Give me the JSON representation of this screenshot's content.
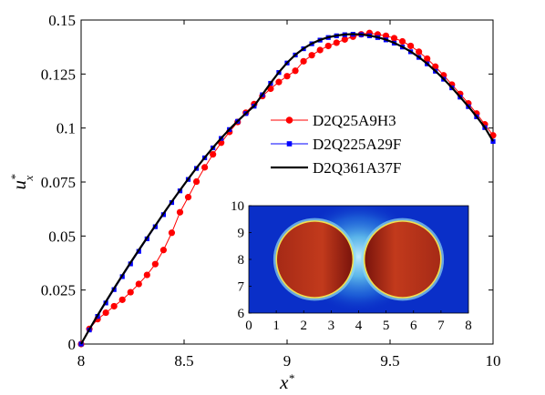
{
  "chart_data": [
    {
      "type": "line",
      "xlabel": "x",
      "xlabel_sup": "*",
      "ylabel": "u",
      "ylabel_sup": "*",
      "ylabel_sub": "x",
      "xlim": [
        8,
        10
      ],
      "ylim": [
        0,
        0.15
      ],
      "x_ticks": [
        8,
        8.5,
        9,
        9.5,
        10
      ],
      "x_tick_labels": [
        "8",
        "8.5",
        "9",
        "9.5",
        "10"
      ],
      "y_ticks": [
        0,
        0.025,
        0.05,
        0.075,
        0.1,
        0.125,
        0.15
      ],
      "y_tick_labels": [
        "0",
        "0.025",
        "0.05",
        "0.075",
        "0.1",
        "0.125",
        "0.15"
      ],
      "grid": false,
      "legend_position": "right",
      "series": [
        {
          "name": "D2Q25A9H3",
          "color": "#ff0000",
          "marker": "circle",
          "x": [
            8.0,
            8.04,
            8.08,
            8.12,
            8.16,
            8.2,
            8.24,
            8.28,
            8.32,
            8.36,
            8.4,
            8.44,
            8.48,
            8.52,
            8.56,
            8.6,
            8.64,
            8.68,
            8.72,
            8.76,
            8.8,
            8.84,
            8.88,
            8.92,
            8.96,
            9.0,
            9.04,
            9.08,
            9.12,
            9.16,
            9.2,
            9.24,
            9.28,
            9.32,
            9.36,
            9.4,
            9.44,
            9.48,
            9.52,
            9.56,
            9.6,
            9.64,
            9.68,
            9.72,
            9.76,
            9.8,
            9.84,
            9.88,
            9.92,
            9.96,
            10.0
          ],
          "values": [
            0.0,
            0.007,
            0.0115,
            0.0145,
            0.0175,
            0.0205,
            0.024,
            0.0278,
            0.032,
            0.037,
            0.0435,
            0.0515,
            0.061,
            0.068,
            0.0752,
            0.0818,
            0.0878,
            0.0932,
            0.0982,
            0.1028,
            0.1071,
            0.1111,
            0.1148,
            0.1182,
            0.1213,
            0.124,
            0.1265,
            0.1309,
            0.1337,
            0.1361,
            0.138,
            0.1395,
            0.141,
            0.1423,
            0.1434,
            0.144,
            0.1433,
            0.1427,
            0.1416,
            0.1401,
            0.138,
            0.1353,
            0.1321,
            0.1284,
            0.1244,
            0.1201,
            0.1158,
            0.1114,
            0.1067,
            0.1017,
            0.0966
          ]
        },
        {
          "name": "D2Q225A29F",
          "color": "#0000ff",
          "marker": "square",
          "x": [
            8.0,
            8.04,
            8.08,
            8.12,
            8.16,
            8.2,
            8.24,
            8.28,
            8.32,
            8.36,
            8.4,
            8.44,
            8.48,
            8.52,
            8.56,
            8.6,
            8.64,
            8.68,
            8.72,
            8.76,
            8.8,
            8.84,
            8.88,
            8.92,
            8.96,
            9.0,
            9.04,
            9.08,
            9.12,
            9.16,
            9.2,
            9.24,
            9.28,
            9.32,
            9.36,
            9.4,
            9.44,
            9.48,
            9.52,
            9.56,
            9.6,
            9.64,
            9.68,
            9.72,
            9.76,
            9.8,
            9.84,
            9.88,
            9.92,
            9.96,
            10.0
          ],
          "values": [
            0.0,
            0.0065,
            0.0128,
            0.019,
            0.0252,
            0.0312,
            0.0371,
            0.0429,
            0.0487,
            0.0543,
            0.0599,
            0.0655,
            0.0709,
            0.0762,
            0.0813,
            0.0862,
            0.0908,
            0.0952,
            0.0993,
            0.1031,
            0.1067,
            0.1101,
            0.1154,
            0.1207,
            0.1257,
            0.1301,
            0.1338,
            0.1367,
            0.139,
            0.1407,
            0.1419,
            0.1427,
            0.1432,
            0.1434,
            0.1432,
            0.1427,
            0.1419,
            0.1408,
            0.1393,
            0.1375,
            0.1353,
            0.1327,
            0.1297,
            0.1263,
            0.1226,
            0.1186,
            0.1143,
            0.1099,
            0.1052,
            0.1002,
            0.0938
          ]
        },
        {
          "name": "D2Q361A37F",
          "color": "#000000",
          "marker": "none",
          "x": [
            8.0,
            8.04,
            8.08,
            8.12,
            8.16,
            8.2,
            8.24,
            8.28,
            8.32,
            8.36,
            8.4,
            8.44,
            8.48,
            8.52,
            8.56,
            8.6,
            8.64,
            8.68,
            8.72,
            8.76,
            8.8,
            8.84,
            8.88,
            8.92,
            8.96,
            9.0,
            9.04,
            9.08,
            9.12,
            9.16,
            9.2,
            9.24,
            9.28,
            9.32,
            9.36,
            9.4,
            9.44,
            9.48,
            9.52,
            9.56,
            9.6,
            9.64,
            9.68,
            9.72,
            9.76,
            9.8,
            9.84,
            9.88,
            9.92,
            9.96,
            10.0
          ],
          "values": [
            0.0,
            0.0068,
            0.0133,
            0.0196,
            0.0258,
            0.0318,
            0.0377,
            0.0435,
            0.0492,
            0.0548,
            0.0604,
            0.0659,
            0.0712,
            0.0764,
            0.0815,
            0.0863,
            0.0909,
            0.0953,
            0.0994,
            0.1032,
            0.1068,
            0.1102,
            0.1155,
            0.1208,
            0.1258,
            0.1302,
            0.1339,
            0.1368,
            0.1391,
            0.1408,
            0.142,
            0.1428,
            0.1433,
            0.1435,
            0.1433,
            0.1428,
            0.142,
            0.1409,
            0.1394,
            0.1376,
            0.1354,
            0.1328,
            0.1298,
            0.1264,
            0.1227,
            0.1187,
            0.1144,
            0.11,
            0.1053,
            0.1003,
            0.0939
          ]
        }
      ]
    },
    {
      "type": "heatmap",
      "xlim": [
        0,
        8
      ],
      "ylim": [
        6,
        10
      ],
      "x_ticks": [
        0,
        1,
        2,
        3,
        4,
        5,
        6,
        7,
        8
      ],
      "x_tick_labels": [
        "0",
        "1",
        "2",
        "3",
        "4",
        "5",
        "6",
        "7",
        "8"
      ],
      "y_ticks": [
        6,
        7,
        8,
        9,
        10
      ],
      "y_tick_labels": [
        "6",
        "7",
        "8",
        "9",
        "10"
      ],
      "circles": [
        {
          "cx": 2.4,
          "cy": 8.0,
          "r": 1.45
        },
        {
          "cx": 5.6,
          "cy": 8.0,
          "r": 1.45
        }
      ],
      "colors": {
        "background": "#0a2fc8",
        "glow": "#7fe0f5",
        "circle_dark": "#8a1810",
        "circle_light": "#d84420",
        "rim": "#f0e050"
      }
    }
  ]
}
